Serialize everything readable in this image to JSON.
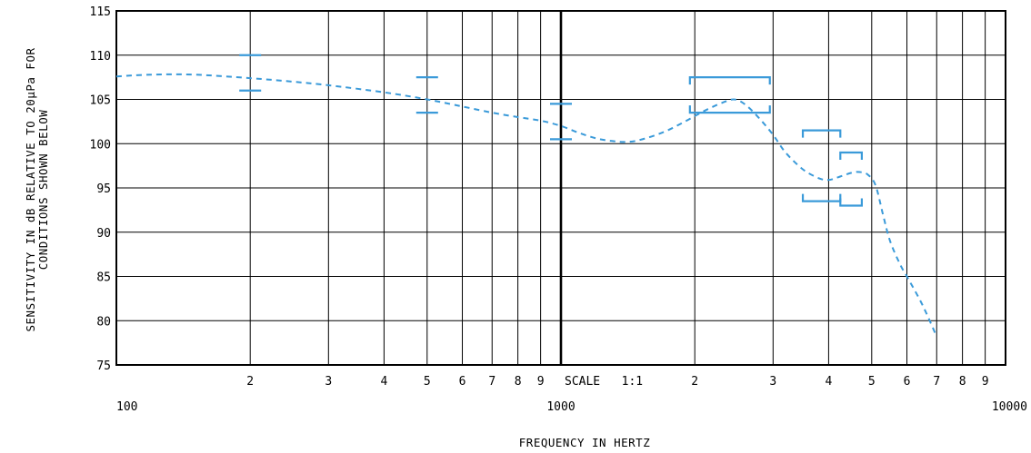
{
  "chart_data": {
    "type": "line",
    "xscale": "log",
    "xlim": [
      100,
      10000
    ],
    "ylim": [
      75,
      115
    ],
    "grid": true,
    "xlabel": "FREQUENCY IN HERTZ",
    "ylabel_lines": [
      "SENSITIVITY IN dB RELATIVE TO 20µPa FOR",
      "CONDITIONS SHOWN BELOW"
    ],
    "y_ticks": [
      75,
      80,
      85,
      90,
      95,
      100,
      105,
      110,
      115
    ],
    "x_decade_labels": [
      {
        "value": 100,
        "label": "100"
      },
      {
        "value": 1000,
        "label": "1000"
      },
      {
        "value": 10000,
        "label": "10000"
      }
    ],
    "x_minor_labels": [
      {
        "value": 200,
        "label": "2"
      },
      {
        "value": 300,
        "label": "3"
      },
      {
        "value": 400,
        "label": "4"
      },
      {
        "value": 500,
        "label": "5"
      },
      {
        "value": 600,
        "label": "6"
      },
      {
        "value": 700,
        "label": "7"
      },
      {
        "value": 800,
        "label": "8"
      },
      {
        "value": 900,
        "label": "9"
      },
      {
        "value": 2000,
        "label": "2"
      },
      {
        "value": 3000,
        "label": "3"
      },
      {
        "value": 4000,
        "label": "4"
      },
      {
        "value": 5000,
        "label": "5"
      },
      {
        "value": 6000,
        "label": "6"
      },
      {
        "value": 7000,
        "label": "7"
      },
      {
        "value": 8000,
        "label": "8"
      },
      {
        "value": 9000,
        "label": "9"
      }
    ],
    "annotation": "SCALE   1:1",
    "curve_color": "#3a9ad9",
    "series": [
      {
        "style": "dashed",
        "x": [
          100,
          120,
          150,
          200,
          250,
          300,
          400,
          500,
          600,
          700,
          800,
          900,
          1000,
          1100,
          1200,
          1300,
          1400,
          1500,
          1700,
          1900,
          2100,
          2300,
          2450,
          2600,
          2800,
          3000,
          3200,
          3500,
          3800,
          4000,
          4200,
          4500,
          4700,
          4900,
          5100,
          5300,
          5500,
          5800,
          6000,
          6500,
          7000
        ],
        "y": [
          107.6,
          107.8,
          107.8,
          107.4,
          107.0,
          106.6,
          105.8,
          105.0,
          104.2,
          103.5,
          103.0,
          102.6,
          102.0,
          101.2,
          100.6,
          100.3,
          100.2,
          100.4,
          101.3,
          102.5,
          103.7,
          104.6,
          105.0,
          104.4,
          102.8,
          101.0,
          99.0,
          97.1,
          96.1,
          95.9,
          96.2,
          96.7,
          96.8,
          96.5,
          95.3,
          92.0,
          89.0,
          86.3,
          85.0,
          81.8,
          78.2
        ]
      }
    ],
    "tolerance_marks": [
      {
        "kind": "bar",
        "x": 200,
        "y": 110.0
      },
      {
        "kind": "bar",
        "x": 200,
        "y": 106.0
      },
      {
        "kind": "bar",
        "x": 500,
        "y": 107.5
      },
      {
        "kind": "bar",
        "x": 500,
        "y": 103.5
      },
      {
        "kind": "bar",
        "x": 1000,
        "y": 104.5
      },
      {
        "kind": "bar",
        "x": 1000,
        "y": 100.5
      },
      {
        "kind": "box-top",
        "x_from": 1950,
        "x_to": 2950,
        "y": 107.5
      },
      {
        "kind": "box-bottom",
        "x_from": 1950,
        "x_to": 2950,
        "y": 103.5
      },
      {
        "kind": "box-top",
        "x_from": 3500,
        "x_to": 4250,
        "y": 101.5
      },
      {
        "kind": "box-bottom",
        "x_from": 3500,
        "x_to": 4250,
        "y": 93.5
      },
      {
        "kind": "box-top",
        "x_from": 4250,
        "x_to": 4750,
        "y": 99.0
      },
      {
        "kind": "box-bottom",
        "x_from": 4250,
        "x_to": 4750,
        "y": 93.0
      }
    ]
  }
}
